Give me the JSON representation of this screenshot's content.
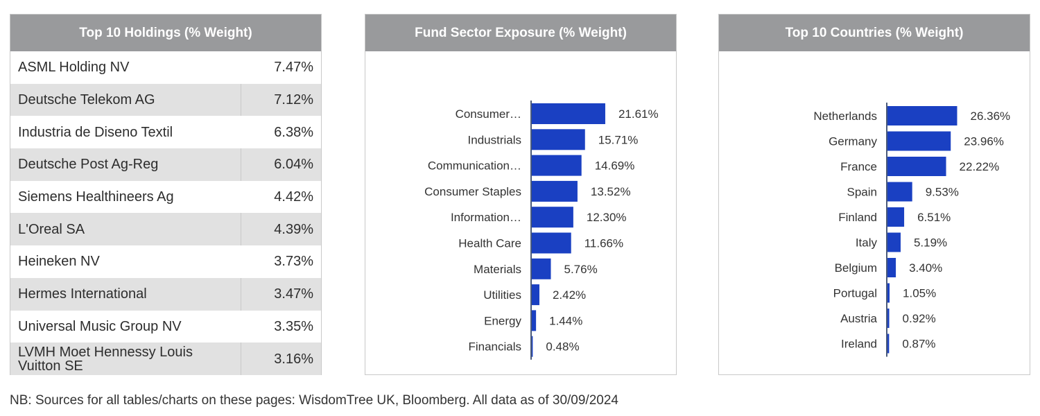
{
  "holdings": {
    "title": "Top 10 Holdings (% Weight)",
    "rows": [
      {
        "name": "ASML Holding NV",
        "weight": "7.47%"
      },
      {
        "name": "Deutsche Telekom AG",
        "weight": "7.12%"
      },
      {
        "name": "Industria de Diseno Textil",
        "weight": "6.38%"
      },
      {
        "name": "Deutsche Post Ag-Reg",
        "weight": "6.04%"
      },
      {
        "name": "Siemens Healthineers Ag",
        "weight": "4.42%"
      },
      {
        "name": "L'Oreal SA",
        "weight": "4.39%"
      },
      {
        "name": "Heineken NV",
        "weight": "3.73%"
      },
      {
        "name": "Hermes International",
        "weight": "3.47%"
      },
      {
        "name": "Universal Music Group NV",
        "weight": "3.35%"
      },
      {
        "name": "LVMH Moet Hennessy Louis Vuitton SE",
        "weight": "3.16%"
      }
    ]
  },
  "sector": {
    "title": "Fund Sector Exposure (% Weight)"
  },
  "countries": {
    "title": "Top 10 Countries (% Weight)"
  },
  "colors": {
    "bar": "#1a40c2",
    "axis": "#4a5a7a",
    "header_bg": "#999a9c"
  },
  "chart_data": [
    {
      "type": "bar",
      "orientation": "horizontal",
      "title": "Fund Sector Exposure (% Weight)",
      "categories": [
        "Consumer…",
        "Industrials",
        "Communication…",
        "Consumer Staples",
        "Information…",
        "Health Care",
        "Materials",
        "Utilities",
        "Energy",
        "Financials"
      ],
      "values": [
        21.61,
        15.71,
        14.69,
        13.52,
        12.3,
        11.66,
        5.76,
        2.42,
        1.44,
        0.48
      ],
      "labels": [
        "21.61%",
        "15.71%",
        "14.69%",
        "13.52%",
        "12.30%",
        "11.66%",
        "5.76%",
        "2.42%",
        "1.44%",
        "0.48%"
      ],
      "xlim": [
        0,
        25
      ]
    },
    {
      "type": "bar",
      "orientation": "horizontal",
      "title": "Top 10 Countries (% Weight)",
      "categories": [
        "Netherlands",
        "Germany",
        "France",
        "Spain",
        "Finland",
        "Italy",
        "Belgium",
        "Portugal",
        "Austria",
        "Ireland"
      ],
      "values": [
        26.36,
        23.96,
        22.22,
        9.53,
        6.51,
        5.19,
        3.4,
        1.05,
        0.92,
        0.87
      ],
      "labels": [
        "26.36%",
        "23.96%",
        "22.22%",
        "9.53%",
        "6.51%",
        "5.19%",
        "3.40%",
        "1.05%",
        "0.92%",
        "0.87%"
      ],
      "xlim": [
        0,
        30
      ]
    }
  ],
  "footnote": "NB: Sources for all tables/charts on these pages: WisdomTree UK, Bloomberg. All data as of 30/09/2024"
}
